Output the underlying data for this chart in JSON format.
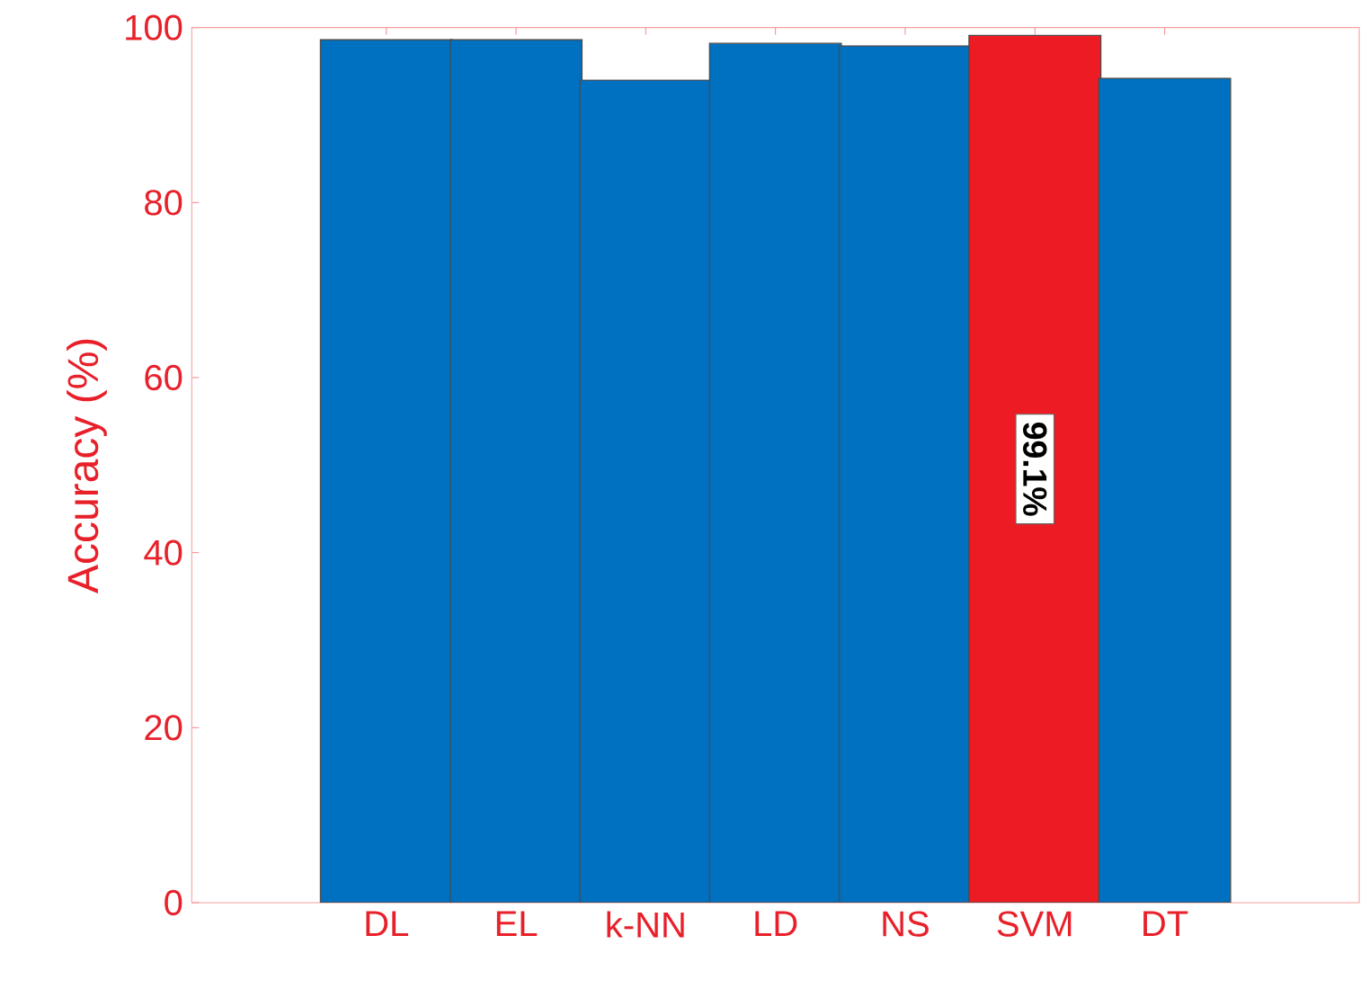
{
  "chart_data": {
    "type": "bar",
    "ylabel": "Accuracy (%)",
    "categories": [
      "DL",
      "EL",
      "k-NN",
      "LD",
      "NS",
      "SVM",
      "DT"
    ],
    "values": [
      98.6,
      98.6,
      94.0,
      98.2,
      97.9,
      99.1,
      94.2
    ],
    "colors": [
      "#0070c0",
      "#0070c0",
      "#0070c0",
      "#0070c0",
      "#0070c0",
      "#ed1c24",
      "#0070c0"
    ],
    "value_labels": [
      null,
      null,
      null,
      null,
      null,
      "99.1%",
      null
    ],
    "ylim": [
      0,
      100
    ],
    "yticks": [
      0,
      20,
      40,
      60,
      80,
      100
    ],
    "grid": false
  }
}
